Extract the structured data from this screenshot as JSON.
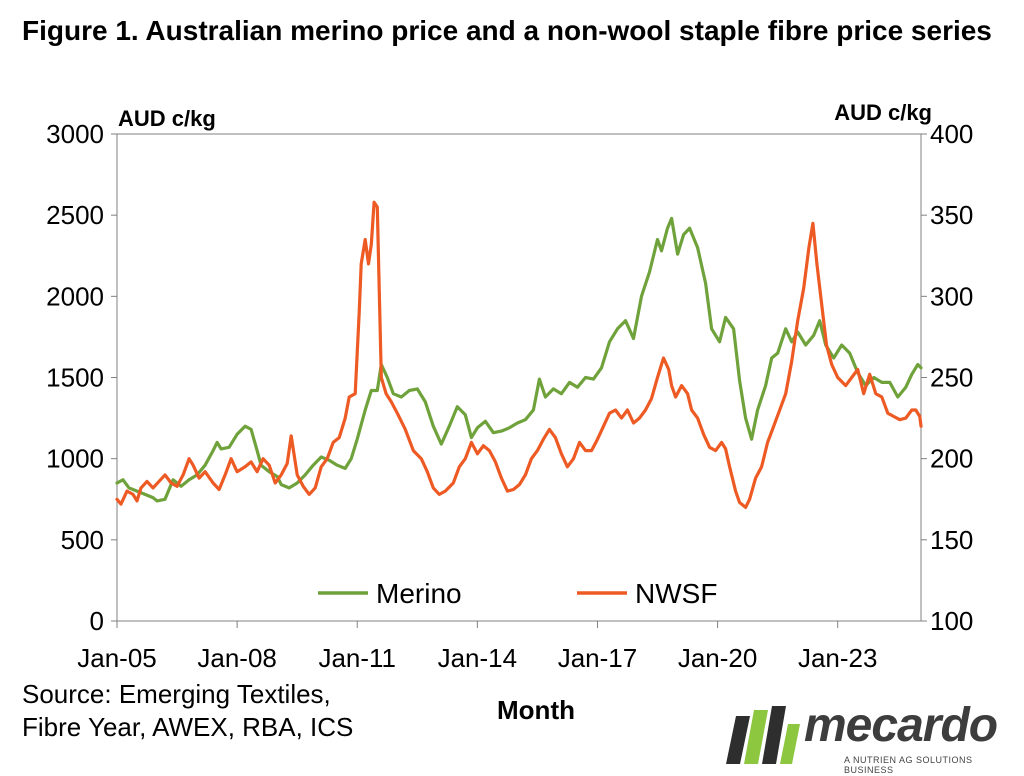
{
  "title": "Figure 1. Australian merino price and a non-wool staple fibre price series",
  "source": {
    "line1": "Source: Emerging Textiles,",
    "line2": "Fibre Year, AWEX, RBA, ICS"
  },
  "logo": {
    "wordmark": "mecardo",
    "tagline": "A NUTRIEN AG SOLUTIONS BUSINESS",
    "colors": [
      "#2e2e2e",
      "#8dc63f"
    ]
  },
  "colors": {
    "merino": "#70a23c",
    "nwsf": "#ee5a24",
    "axis": "#808080"
  },
  "chart_data": {
    "type": "line",
    "title": "Figure 1. Australian merino price and a non-wool staple fibre price series",
    "xlabel": "Month",
    "ylabel_left": "AUD c/kg",
    "ylabel_right": "AUD c/kg",
    "y_left": {
      "min": 0,
      "max": 3000,
      "ticks": [
        0,
        500,
        1000,
        1500,
        2000,
        2500,
        3000
      ]
    },
    "y_right": {
      "min": 100,
      "max": 400,
      "ticks": [
        100,
        150,
        200,
        250,
        300,
        350,
        400
      ]
    },
    "x_range": [
      2005.0,
      2025.08
    ],
    "x_ticks": [
      "Jan-05",
      "Jan-08",
      "Jan-11",
      "Jan-14",
      "Jan-17",
      "Jan-20",
      "Jan-23"
    ],
    "x_tick_years": [
      2005,
      2008,
      2011,
      2014,
      2017,
      2020,
      2023
    ],
    "grid": false,
    "legend": {
      "position": "bottom-center",
      "entries": [
        "Merino",
        "NWSF"
      ]
    },
    "series": [
      {
        "name": "Merino",
        "axis": "left",
        "points": [
          [
            2005.0,
            850
          ],
          [
            2005.15,
            870
          ],
          [
            2005.3,
            820
          ],
          [
            2005.5,
            800
          ],
          [
            2005.7,
            780
          ],
          [
            2005.9,
            760
          ],
          [
            2006.0,
            740
          ],
          [
            2006.2,
            750
          ],
          [
            2006.4,
            870
          ],
          [
            2006.6,
            830
          ],
          [
            2006.8,
            870
          ],
          [
            2007.0,
            900
          ],
          [
            2007.2,
            960
          ],
          [
            2007.4,
            1050
          ],
          [
            2007.5,
            1100
          ],
          [
            2007.6,
            1060
          ],
          [
            2007.8,
            1070
          ],
          [
            2008.0,
            1150
          ],
          [
            2008.2,
            1200
          ],
          [
            2008.35,
            1180
          ],
          [
            2008.5,
            1050
          ],
          [
            2008.6,
            960
          ],
          [
            2008.8,
            920
          ],
          [
            2009.0,
            890
          ],
          [
            2009.1,
            840
          ],
          [
            2009.3,
            820
          ],
          [
            2009.5,
            850
          ],
          [
            2009.7,
            900
          ],
          [
            2009.9,
            960
          ],
          [
            2010.1,
            1010
          ],
          [
            2010.3,
            990
          ],
          [
            2010.5,
            960
          ],
          [
            2010.7,
            940
          ],
          [
            2010.85,
            1000
          ],
          [
            2011.0,
            1120
          ],
          [
            2011.2,
            1300
          ],
          [
            2011.35,
            1420
          ],
          [
            2011.5,
            1420
          ],
          [
            2011.6,
            1580
          ],
          [
            2011.75,
            1500
          ],
          [
            2011.9,
            1400
          ],
          [
            2012.1,
            1380
          ],
          [
            2012.3,
            1420
          ],
          [
            2012.5,
            1430
          ],
          [
            2012.7,
            1350
          ],
          [
            2012.9,
            1200
          ],
          [
            2013.1,
            1090
          ],
          [
            2013.3,
            1200
          ],
          [
            2013.5,
            1320
          ],
          [
            2013.7,
            1270
          ],
          [
            2013.85,
            1130
          ],
          [
            2014.0,
            1190
          ],
          [
            2014.2,
            1230
          ],
          [
            2014.4,
            1160
          ],
          [
            2014.6,
            1170
          ],
          [
            2014.8,
            1190
          ],
          [
            2015.0,
            1220
          ],
          [
            2015.2,
            1240
          ],
          [
            2015.4,
            1300
          ],
          [
            2015.55,
            1490
          ],
          [
            2015.7,
            1380
          ],
          [
            2015.9,
            1430
          ],
          [
            2016.1,
            1400
          ],
          [
            2016.3,
            1470
          ],
          [
            2016.5,
            1440
          ],
          [
            2016.7,
            1500
          ],
          [
            2016.9,
            1490
          ],
          [
            2017.1,
            1560
          ],
          [
            2017.3,
            1720
          ],
          [
            2017.5,
            1800
          ],
          [
            2017.7,
            1850
          ],
          [
            2017.9,
            1740
          ],
          [
            2018.1,
            2000
          ],
          [
            2018.3,
            2150
          ],
          [
            2018.5,
            2350
          ],
          [
            2018.6,
            2280
          ],
          [
            2018.75,
            2420
          ],
          [
            2018.85,
            2480
          ],
          [
            2019.0,
            2260
          ],
          [
            2019.15,
            2380
          ],
          [
            2019.3,
            2420
          ],
          [
            2019.5,
            2300
          ],
          [
            2019.7,
            2080
          ],
          [
            2019.85,
            1800
          ],
          [
            2020.05,
            1720
          ],
          [
            2020.2,
            1870
          ],
          [
            2020.4,
            1800
          ],
          [
            2020.55,
            1480
          ],
          [
            2020.7,
            1250
          ],
          [
            2020.85,
            1120
          ],
          [
            2021.0,
            1300
          ],
          [
            2021.2,
            1450
          ],
          [
            2021.35,
            1620
          ],
          [
            2021.5,
            1650
          ],
          [
            2021.7,
            1800
          ],
          [
            2021.85,
            1720
          ],
          [
            2022.0,
            1780
          ],
          [
            2022.2,
            1700
          ],
          [
            2022.4,
            1760
          ],
          [
            2022.55,
            1850
          ],
          [
            2022.7,
            1700
          ],
          [
            2022.9,
            1620
          ],
          [
            2023.1,
            1700
          ],
          [
            2023.3,
            1650
          ],
          [
            2023.5,
            1530
          ],
          [
            2023.7,
            1450
          ],
          [
            2023.9,
            1500
          ],
          [
            2024.1,
            1470
          ],
          [
            2024.3,
            1470
          ],
          [
            2024.5,
            1380
          ],
          [
            2024.7,
            1440
          ],
          [
            2024.85,
            1520
          ],
          [
            2025.0,
            1580
          ],
          [
            2025.08,
            1560
          ]
        ]
      },
      {
        "name": "NWSF",
        "axis": "right",
        "points": [
          [
            2005.0,
            175
          ],
          [
            2005.1,
            172
          ],
          [
            2005.25,
            180
          ],
          [
            2005.4,
            178
          ],
          [
            2005.5,
            174
          ],
          [
            2005.6,
            182
          ],
          [
            2005.75,
            186
          ],
          [
            2005.9,
            182
          ],
          [
            2006.05,
            186
          ],
          [
            2006.2,
            190
          ],
          [
            2006.35,
            185
          ],
          [
            2006.5,
            183
          ],
          [
            2006.65,
            190
          ],
          [
            2006.8,
            200
          ],
          [
            2006.9,
            196
          ],
          [
            2007.05,
            188
          ],
          [
            2007.2,
            192
          ],
          [
            2007.4,
            185
          ],
          [
            2007.55,
            181
          ],
          [
            2007.7,
            190
          ],
          [
            2007.85,
            200
          ],
          [
            2008.0,
            192
          ],
          [
            2008.2,
            195
          ],
          [
            2008.35,
            198
          ],
          [
            2008.5,
            192
          ],
          [
            2008.65,
            200
          ],
          [
            2008.8,
            196
          ],
          [
            2008.95,
            185
          ],
          [
            2009.1,
            190
          ],
          [
            2009.25,
            197
          ],
          [
            2009.35,
            214
          ],
          [
            2009.5,
            190
          ],
          [
            2009.65,
            183
          ],
          [
            2009.8,
            178
          ],
          [
            2009.95,
            182
          ],
          [
            2010.1,
            195
          ],
          [
            2010.25,
            200
          ],
          [
            2010.4,
            210
          ],
          [
            2010.55,
            213
          ],
          [
            2010.7,
            225
          ],
          [
            2010.8,
            238
          ],
          [
            2010.95,
            240
          ],
          [
            2011.05,
            290
          ],
          [
            2011.1,
            320
          ],
          [
            2011.2,
            335
          ],
          [
            2011.28,
            320
          ],
          [
            2011.35,
            332
          ],
          [
            2011.42,
            358
          ],
          [
            2011.5,
            355
          ],
          [
            2011.6,
            250
          ],
          [
            2011.72,
            240
          ],
          [
            2011.85,
            235
          ],
          [
            2012.0,
            228
          ],
          [
            2012.2,
            218
          ],
          [
            2012.4,
            205
          ],
          [
            2012.6,
            200
          ],
          [
            2012.75,
            192
          ],
          [
            2012.9,
            182
          ],
          [
            2013.05,
            178
          ],
          [
            2013.2,
            180
          ],
          [
            2013.4,
            185
          ],
          [
            2013.55,
            195
          ],
          [
            2013.7,
            200
          ],
          [
            2013.85,
            210
          ],
          [
            2014.0,
            203
          ],
          [
            2014.15,
            208
          ],
          [
            2014.3,
            205
          ],
          [
            2014.45,
            198
          ],
          [
            2014.6,
            188
          ],
          [
            2014.75,
            180
          ],
          [
            2014.9,
            181
          ],
          [
            2015.05,
            184
          ],
          [
            2015.2,
            190
          ],
          [
            2015.35,
            200
          ],
          [
            2015.5,
            205
          ],
          [
            2015.65,
            212
          ],
          [
            2015.8,
            218
          ],
          [
            2015.95,
            213
          ],
          [
            2016.1,
            203
          ],
          [
            2016.25,
            195
          ],
          [
            2016.4,
            200
          ],
          [
            2016.55,
            210
          ],
          [
            2016.7,
            205
          ],
          [
            2016.85,
            205
          ],
          [
            2017.0,
            212
          ],
          [
            2017.15,
            220
          ],
          [
            2017.3,
            228
          ],
          [
            2017.45,
            230
          ],
          [
            2017.6,
            225
          ],
          [
            2017.75,
            230
          ],
          [
            2017.9,
            222
          ],
          [
            2018.05,
            225
          ],
          [
            2018.2,
            230
          ],
          [
            2018.35,
            237
          ],
          [
            2018.5,
            250
          ],
          [
            2018.65,
            262
          ],
          [
            2018.78,
            255
          ],
          [
            2018.85,
            245
          ],
          [
            2018.95,
            238
          ],
          [
            2019.1,
            245
          ],
          [
            2019.25,
            240
          ],
          [
            2019.35,
            230
          ],
          [
            2019.5,
            225
          ],
          [
            2019.65,
            215
          ],
          [
            2019.8,
            207
          ],
          [
            2019.95,
            205
          ],
          [
            2020.1,
            210
          ],
          [
            2020.2,
            206
          ],
          [
            2020.3,
            195
          ],
          [
            2020.45,
            180
          ],
          [
            2020.55,
            173
          ],
          [
            2020.7,
            170
          ],
          [
            2020.8,
            175
          ],
          [
            2020.95,
            188
          ],
          [
            2021.1,
            195
          ],
          [
            2021.25,
            210
          ],
          [
            2021.4,
            220
          ],
          [
            2021.55,
            230
          ],
          [
            2021.7,
            240
          ],
          [
            2021.85,
            260
          ],
          [
            2022.0,
            285
          ],
          [
            2022.15,
            305
          ],
          [
            2022.28,
            330
          ],
          [
            2022.38,
            345
          ],
          [
            2022.48,
            320
          ],
          [
            2022.6,
            295
          ],
          [
            2022.72,
            270
          ],
          [
            2022.85,
            258
          ],
          [
            2023.0,
            250
          ],
          [
            2023.2,
            245
          ],
          [
            2023.35,
            250
          ],
          [
            2023.5,
            255
          ],
          [
            2023.65,
            240
          ],
          [
            2023.8,
            252
          ],
          [
            2023.95,
            240
          ],
          [
            2024.1,
            238
          ],
          [
            2024.25,
            228
          ],
          [
            2024.4,
            226
          ],
          [
            2024.55,
            224
          ],
          [
            2024.7,
            225
          ],
          [
            2024.85,
            230
          ],
          [
            2024.95,
            230
          ],
          [
            2025.05,
            226
          ],
          [
            2025.08,
            220
          ]
        ]
      }
    ]
  }
}
